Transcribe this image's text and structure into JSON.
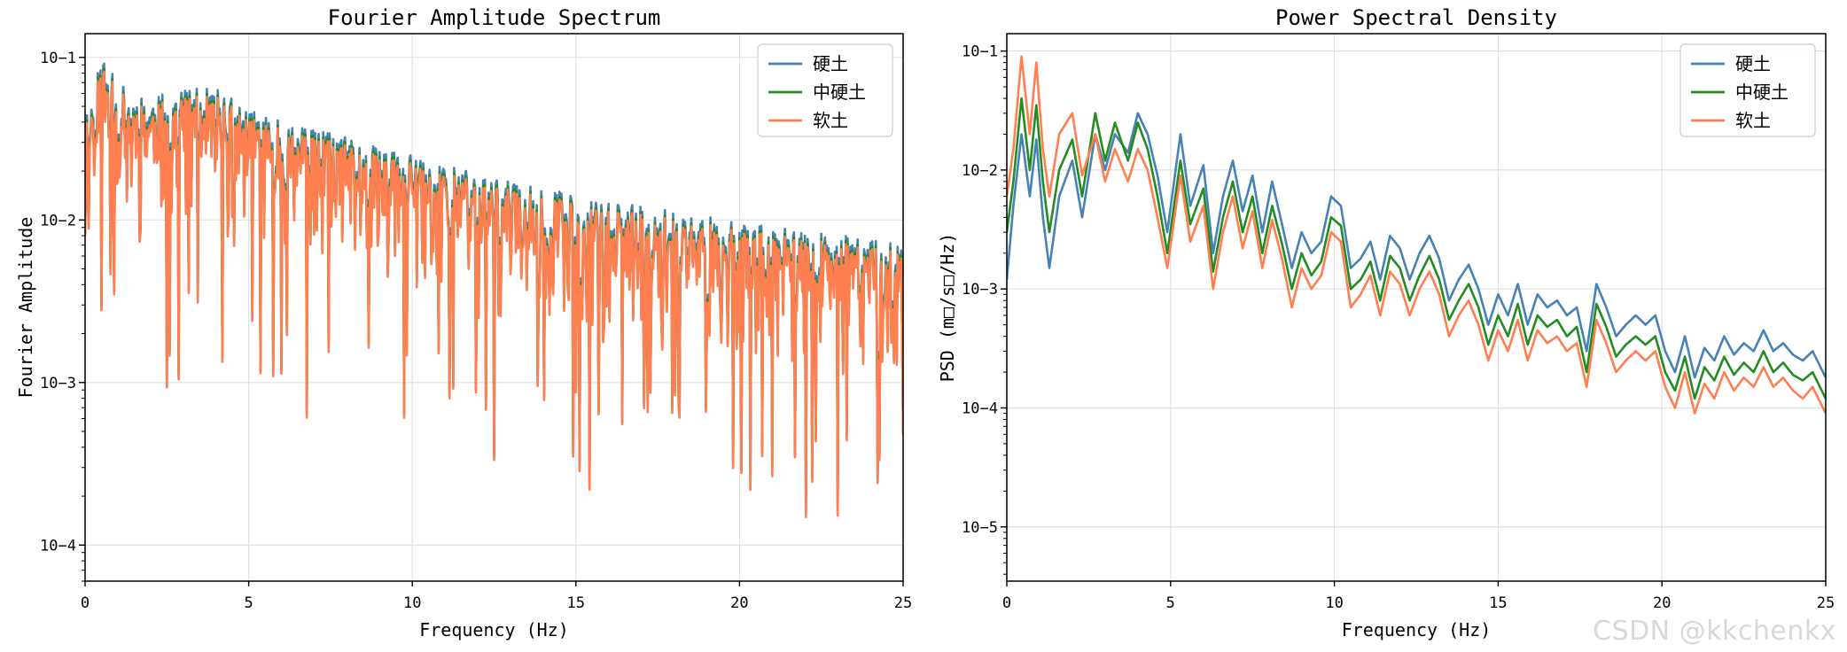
{
  "chart_data": [
    {
      "type": "line",
      "title": "Fourier Amplitude Spectrum",
      "xlabel": "Frequency (Hz)",
      "ylabel": "Fourier Amplitude",
      "yscale": "log",
      "xlim": [
        0,
        25
      ],
      "ylim": [
        6e-05,
        0.14
      ],
      "xticks": [
        0,
        5,
        10,
        15,
        20,
        25
      ],
      "xtick_labels": [
        "0",
        "5",
        "10",
        "15",
        "20",
        "25"
      ],
      "yticks": [
        0.1,
        0.01,
        0.001,
        0.0001
      ],
      "ytick_labels": [
        "10−1",
        "10−2",
        "10−3",
        "10−4"
      ],
      "grid": true,
      "legend_position": "top-right",
      "series": [
        {
          "name": "硬土",
          "color": "#4682b4",
          "scale": 1.12,
          "seed": 11,
          "x": [
            0,
            0.5,
            1,
            1.5,
            2,
            2.5,
            3,
            3.5,
            4,
            4.5,
            5,
            6,
            7,
            8,
            9,
            10,
            11,
            12,
            13,
            14,
            15,
            16,
            17,
            18,
            19,
            20,
            21,
            22,
            23,
            24,
            25
          ],
          "y": [
            0.022,
            0.05,
            0.035,
            0.03,
            0.028,
            0.03,
            0.032,
            0.032,
            0.032,
            0.028,
            0.024,
            0.02,
            0.018,
            0.016,
            0.014,
            0.013,
            0.011,
            0.0095,
            0.0085,
            0.0078,
            0.0072,
            0.0066,
            0.006,
            0.0056,
            0.0052,
            0.0048,
            0.0045,
            0.0042,
            0.004,
            0.0038,
            0.0036
          ]
        },
        {
          "name": "中硬土",
          "color": "#228b22",
          "scale": 1.04,
          "seed": 11,
          "x": [
            0,
            0.5,
            1,
            1.5,
            2,
            2.5,
            3,
            3.5,
            4,
            4.5,
            5,
            6,
            7,
            8,
            9,
            10,
            11,
            12,
            13,
            14,
            15,
            16,
            17,
            18,
            19,
            20,
            21,
            22,
            23,
            24,
            25
          ],
          "y": [
            0.022,
            0.05,
            0.035,
            0.03,
            0.028,
            0.03,
            0.032,
            0.032,
            0.032,
            0.028,
            0.024,
            0.02,
            0.018,
            0.016,
            0.014,
            0.013,
            0.011,
            0.0095,
            0.0085,
            0.0078,
            0.0072,
            0.0066,
            0.006,
            0.0056,
            0.0052,
            0.0048,
            0.0045,
            0.0042,
            0.004,
            0.0038,
            0.0036
          ]
        },
        {
          "name": "软土",
          "color": "#ff7f50",
          "scale": 1.0,
          "seed": 11,
          "x": [
            0,
            0.5,
            1,
            1.5,
            2,
            2.5,
            3,
            3.5,
            4,
            4.5,
            5,
            6,
            7,
            8,
            9,
            10,
            11,
            12,
            13,
            14,
            15,
            16,
            17,
            18,
            19,
            20,
            21,
            22,
            23,
            24,
            25
          ],
          "y": [
            0.022,
            0.05,
            0.035,
            0.03,
            0.028,
            0.03,
            0.032,
            0.032,
            0.032,
            0.028,
            0.024,
            0.02,
            0.018,
            0.016,
            0.014,
            0.013,
            0.011,
            0.0095,
            0.0085,
            0.0078,
            0.0072,
            0.0066,
            0.006,
            0.0056,
            0.0052,
            0.0048,
            0.0045,
            0.0042,
            0.004,
            0.0038,
            0.0036
          ]
        }
      ]
    },
    {
      "type": "line",
      "title": "Power Spectral Density",
      "xlabel": "Frequency (Hz)",
      "ylabel": "PSD (m□/s□/Hz)",
      "yscale": "log",
      "xlim": [
        0,
        25
      ],
      "ylim": [
        3.5e-06,
        0.14
      ],
      "xticks": [
        0,
        5,
        10,
        15,
        20,
        25
      ],
      "xtick_labels": [
        "0",
        "5",
        "10",
        "15",
        "20",
        "25"
      ],
      "yticks": [
        0.1,
        0.01,
        0.001,
        0.0001,
        1e-05
      ],
      "ytick_labels": [
        "10−1",
        "10−2",
        "10−3",
        "10−4",
        "10−5"
      ],
      "grid": true,
      "legend_position": "top-right",
      "series": [
        {
          "name": "硬土",
          "color": "#4682b4",
          "x": [
            0,
            0.2,
            0.45,
            0.7,
            0.9,
            1.1,
            1.3,
            1.6,
            2.0,
            2.3,
            2.7,
            3.0,
            3.3,
            3.7,
            4.0,
            4.3,
            4.6,
            4.9,
            5.3,
            5.6,
            6.0,
            6.3,
            6.6,
            6.9,
            7.2,
            7.5,
            7.8,
            8.1,
            8.4,
            8.7,
            9.0,
            9.3,
            9.6,
            9.9,
            10.2,
            10.5,
            10.8,
            11.1,
            11.4,
            11.7,
            12.0,
            12.3,
            12.6,
            12.9,
            13.2,
            13.5,
            13.8,
            14.1,
            14.4,
            14.7,
            15.0,
            15.3,
            15.6,
            15.9,
            16.2,
            16.5,
            16.8,
            17.1,
            17.4,
            17.7,
            18.0,
            18.3,
            18.6,
            18.9,
            19.2,
            19.5,
            19.8,
            20.1,
            20.4,
            20.7,
            21.0,
            21.3,
            21.6,
            21.9,
            22.2,
            22.5,
            22.8,
            23.1,
            23.4,
            23.7,
            24.0,
            24.3,
            24.6,
            25.0
          ],
          "y": [
            0.0012,
            0.005,
            0.02,
            0.006,
            0.018,
            0.004,
            0.0015,
            0.006,
            0.012,
            0.004,
            0.02,
            0.01,
            0.02,
            0.014,
            0.03,
            0.02,
            0.009,
            0.003,
            0.02,
            0.005,
            0.011,
            0.002,
            0.006,
            0.012,
            0.0045,
            0.009,
            0.003,
            0.008,
            0.0035,
            0.0015,
            0.003,
            0.002,
            0.0025,
            0.006,
            0.005,
            0.0015,
            0.0018,
            0.0025,
            0.0012,
            0.0028,
            0.0022,
            0.0012,
            0.002,
            0.0028,
            0.0018,
            0.0008,
            0.0012,
            0.0016,
            0.001,
            0.0005,
            0.0009,
            0.0006,
            0.0011,
            0.0005,
            0.0009,
            0.0007,
            0.0008,
            0.0006,
            0.0007,
            0.0003,
            0.0011,
            0.0007,
            0.0004,
            0.0005,
            0.0006,
            0.0005,
            0.0006,
            0.0003,
            0.0002,
            0.0004,
            0.00018,
            0.00032,
            0.00025,
            0.0004,
            0.00028,
            0.00035,
            0.0003,
            0.00045,
            0.0003,
            0.00035,
            0.00028,
            0.00025,
            0.0003,
            0.00018
          ]
        },
        {
          "name": "中硬土",
          "color": "#228b22",
          "x": [
            0,
            0.2,
            0.45,
            0.7,
            0.9,
            1.1,
            1.3,
            1.6,
            2.0,
            2.3,
            2.7,
            3.0,
            3.3,
            3.7,
            4.0,
            4.3,
            4.6,
            4.9,
            5.3,
            5.6,
            6.0,
            6.3,
            6.6,
            6.9,
            7.2,
            7.5,
            7.8,
            8.1,
            8.4,
            8.7,
            9.0,
            9.3,
            9.6,
            9.9,
            10.2,
            10.5,
            10.8,
            11.1,
            11.4,
            11.7,
            12.0,
            12.3,
            12.6,
            12.9,
            13.2,
            13.5,
            13.8,
            14.1,
            14.4,
            14.7,
            15.0,
            15.3,
            15.6,
            15.9,
            16.2,
            16.5,
            16.8,
            17.1,
            17.4,
            17.7,
            18.0,
            18.3,
            18.6,
            18.9,
            19.2,
            19.5,
            19.8,
            20.1,
            20.4,
            20.7,
            21.0,
            21.3,
            21.6,
            21.9,
            22.2,
            22.5,
            22.8,
            23.1,
            23.4,
            23.7,
            24.0,
            24.3,
            24.6,
            25.0
          ],
          "y": [
            0.003,
            0.008,
            0.04,
            0.01,
            0.035,
            0.008,
            0.003,
            0.01,
            0.018,
            0.006,
            0.03,
            0.012,
            0.025,
            0.012,
            0.025,
            0.015,
            0.006,
            0.002,
            0.012,
            0.0035,
            0.007,
            0.0014,
            0.004,
            0.008,
            0.003,
            0.006,
            0.002,
            0.005,
            0.0024,
            0.001,
            0.002,
            0.0013,
            0.0017,
            0.004,
            0.0034,
            0.001,
            0.0012,
            0.0017,
            0.0008,
            0.0019,
            0.0015,
            0.0008,
            0.0013,
            0.0019,
            0.0012,
            0.00055,
            0.0008,
            0.0011,
            0.0007,
            0.00034,
            0.0006,
            0.0004,
            0.00075,
            0.00034,
            0.0006,
            0.00048,
            0.00055,
            0.0004,
            0.00048,
            0.0002,
            0.00075,
            0.00048,
            0.00027,
            0.00034,
            0.0004,
            0.00034,
            0.0004,
            0.0002,
            0.00014,
            0.00027,
            0.00012,
            0.00022,
            0.00017,
            0.00027,
            0.00019,
            0.00024,
            0.0002,
            0.0003,
            0.0002,
            0.00024,
            0.00019,
            0.00017,
            0.0002,
            0.00012
          ]
        },
        {
          "name": "软土",
          "color": "#ff7f50",
          "x": [
            0,
            0.2,
            0.45,
            0.7,
            0.9,
            1.1,
            1.3,
            1.6,
            2.0,
            2.3,
            2.7,
            3.0,
            3.3,
            3.7,
            4.0,
            4.3,
            4.6,
            4.9,
            5.3,
            5.6,
            6.0,
            6.3,
            6.6,
            6.9,
            7.2,
            7.5,
            7.8,
            8.1,
            8.4,
            8.7,
            9.0,
            9.3,
            9.6,
            9.9,
            10.2,
            10.5,
            10.8,
            11.1,
            11.4,
            11.7,
            12.0,
            12.3,
            12.6,
            12.9,
            13.2,
            13.5,
            13.8,
            14.1,
            14.4,
            14.7,
            15.0,
            15.3,
            15.6,
            15.9,
            16.2,
            16.5,
            16.8,
            17.1,
            17.4,
            17.7,
            18.0,
            18.3,
            18.6,
            18.9,
            19.2,
            19.5,
            19.8,
            20.1,
            20.4,
            20.7,
            21.0,
            21.3,
            21.6,
            21.9,
            22.2,
            22.5,
            22.8,
            23.1,
            23.4,
            23.7,
            24.0,
            24.3,
            24.6,
            25.0
          ],
          "y": [
            0.006,
            0.015,
            0.09,
            0.02,
            0.08,
            0.015,
            0.006,
            0.02,
            0.03,
            0.009,
            0.02,
            0.008,
            0.015,
            0.008,
            0.015,
            0.01,
            0.004,
            0.0015,
            0.009,
            0.0025,
            0.005,
            0.001,
            0.003,
            0.006,
            0.0022,
            0.0045,
            0.0015,
            0.0038,
            0.0018,
            0.0007,
            0.0015,
            0.001,
            0.0013,
            0.003,
            0.0025,
            0.0007,
            0.0009,
            0.0013,
            0.0006,
            0.0014,
            0.0011,
            0.0006,
            0.001,
            0.0014,
            0.0009,
            0.0004,
            0.0006,
            0.0008,
            0.0005,
            0.00025,
            0.00045,
            0.0003,
            0.00055,
            0.00025,
            0.00045,
            0.00035,
            0.0004,
            0.0003,
            0.00035,
            0.00015,
            0.00055,
            0.00035,
            0.0002,
            0.00025,
            0.0003,
            0.00025,
            0.0003,
            0.00015,
            0.0001,
            0.0002,
            9e-05,
            0.00016,
            0.00012,
            0.0002,
            0.00014,
            0.00018,
            0.00015,
            0.00022,
            0.00015,
            0.00018,
            0.00014,
            0.00012,
            0.00015,
            9e-05
          ]
        }
      ]
    }
  ],
  "watermark": "CSDN @kkchenkx"
}
